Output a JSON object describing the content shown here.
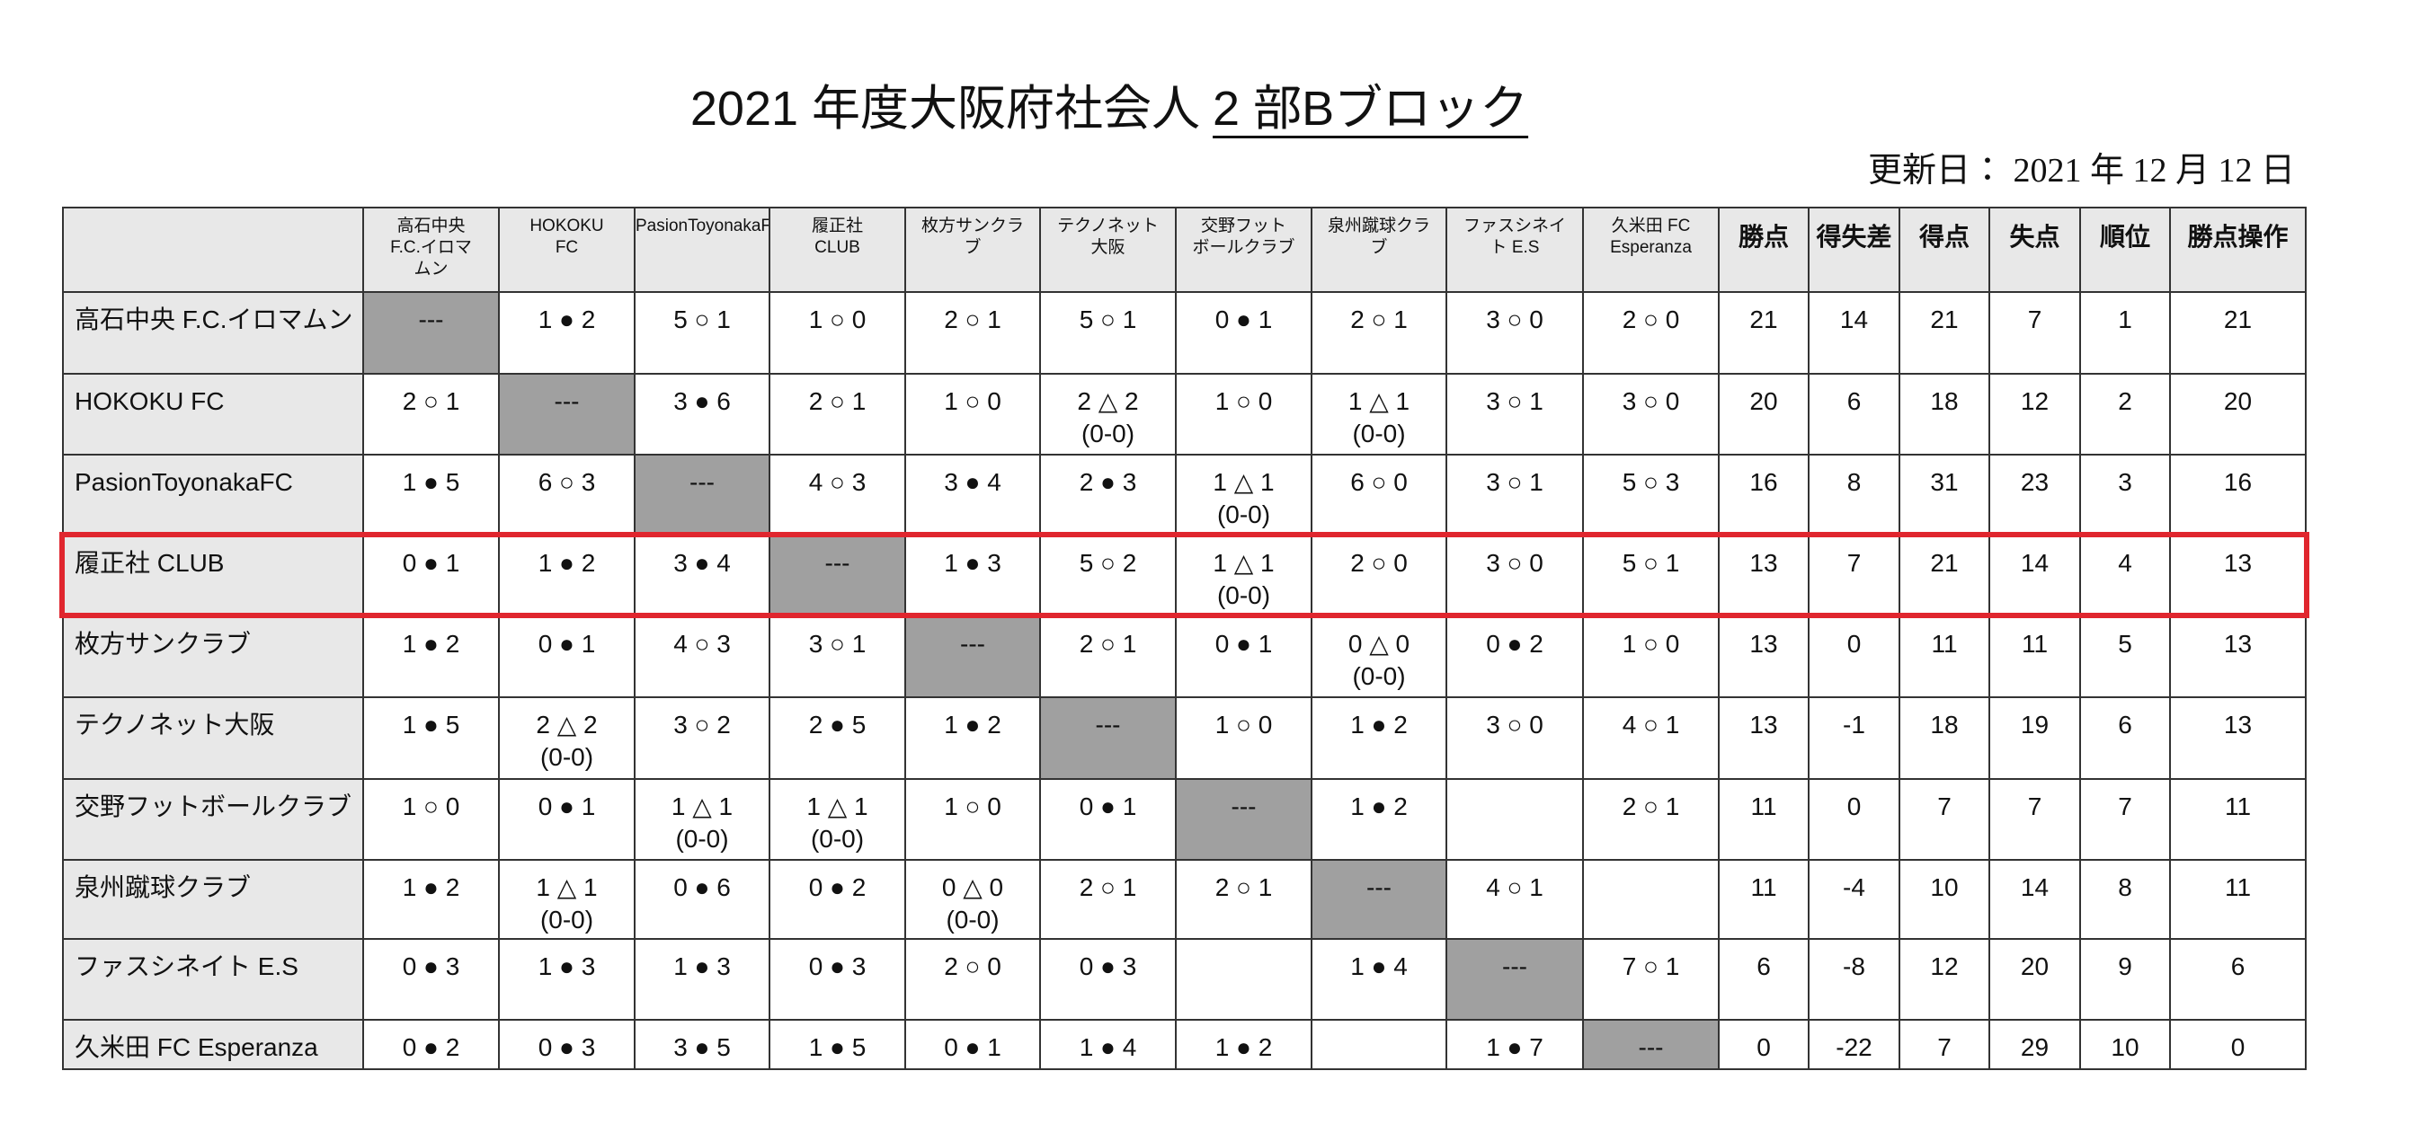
{
  "title": {
    "main": "2021 年度大阪府社会人",
    "underlined": "2 部Bブロック"
  },
  "updated": "更新日： 2021 年 12 月 12 日",
  "highlight": {
    "row": 3,
    "color": "#e0262e"
  },
  "table": {
    "team_headers": [
      [
        "高石中央",
        "F.C.イロマ",
        "ムン"
      ],
      [
        "HOKOKU",
        "FC"
      ],
      [
        "PasionToyonakaFC"
      ],
      [
        "履正社",
        "CLUB"
      ],
      [
        "枚方サンクラ",
        "ブ"
      ],
      [
        "テクノネット",
        "大阪"
      ],
      [
        "交野フット",
        "ボールクラブ"
      ],
      [
        "泉州蹴球クラ",
        "ブ"
      ],
      [
        "ファスシネイ",
        "ト E.S"
      ],
      [
        "久米田 FC",
        "Esperanza"
      ]
    ],
    "stat_headers": [
      "勝点",
      "得失差",
      "得点",
      "失点",
      "順位",
      "勝点操作"
    ],
    "rows": [
      {
        "name": "高石中央 F.C.イロマムン",
        "results": [
          [
            "---"
          ],
          [
            "1 ● 2"
          ],
          [
            "5 ○ 1"
          ],
          [
            "1 ○ 0"
          ],
          [
            "2 ○ 1"
          ],
          [
            "5 ○ 1"
          ],
          [
            "0 ● 1"
          ],
          [
            "2 ○ 1"
          ],
          [
            "3 ○ 0"
          ],
          [
            "2 ○ 0"
          ]
        ],
        "stats": [
          21,
          14,
          21,
          7,
          1,
          21
        ]
      },
      {
        "name": "HOKOKU FC",
        "results": [
          [
            "2 ○ 1"
          ],
          [
            "---"
          ],
          [
            "3 ● 6"
          ],
          [
            "2 ○ 1"
          ],
          [
            "1 ○ 0"
          ],
          [
            "2 △ 2",
            "(0-0)"
          ],
          [
            "1 ○ 0"
          ],
          [
            "1 △ 1",
            "(0-0)"
          ],
          [
            "3 ○ 1"
          ],
          [
            "3 ○ 0"
          ]
        ],
        "stats": [
          20,
          6,
          18,
          12,
          2,
          20
        ]
      },
      {
        "name": "PasionToyonakaFC",
        "results": [
          [
            "1 ● 5"
          ],
          [
            "6 ○ 3"
          ],
          [
            "---"
          ],
          [
            "4 ○ 3"
          ],
          [
            "3 ● 4"
          ],
          [
            "2 ● 3"
          ],
          [
            "1 △ 1",
            "(0-0)"
          ],
          [
            "6 ○ 0"
          ],
          [
            "3 ○ 1"
          ],
          [
            "5 ○ 3"
          ]
        ],
        "stats": [
          16,
          8,
          31,
          23,
          3,
          16
        ]
      },
      {
        "name": "履正社 CLUB",
        "results": [
          [
            "0 ● 1"
          ],
          [
            "1 ● 2"
          ],
          [
            "3 ● 4"
          ],
          [
            "---"
          ],
          [
            "1 ● 3"
          ],
          [
            "5 ○ 2"
          ],
          [
            "1 △ 1",
            "(0-0)"
          ],
          [
            "2 ○ 0"
          ],
          [
            "3 ○ 0"
          ],
          [
            "5 ○ 1"
          ]
        ],
        "stats": [
          13,
          7,
          21,
          14,
          4,
          13
        ]
      },
      {
        "name": "枚方サンクラブ",
        "results": [
          [
            "1 ● 2"
          ],
          [
            "0 ● 1"
          ],
          [
            "4 ○ 3"
          ],
          [
            "3 ○ 1"
          ],
          [
            "---"
          ],
          [
            "2 ○ 1"
          ],
          [
            "0 ● 1"
          ],
          [
            "0 △ 0",
            "(0-0)"
          ],
          [
            "0 ● 2"
          ],
          [
            "1 ○ 0"
          ]
        ],
        "stats": [
          13,
          0,
          11,
          11,
          5,
          13
        ]
      },
      {
        "name": "テクノネット大阪",
        "results": [
          [
            "1 ● 5"
          ],
          [
            "2 △ 2",
            "(0-0)"
          ],
          [
            "3 ○ 2"
          ],
          [
            "2 ● 5"
          ],
          [
            "1 ● 2"
          ],
          [
            "---"
          ],
          [
            "1 ○ 0"
          ],
          [
            "1 ● 2"
          ],
          [
            "3 ○ 0"
          ],
          [
            "4 ○ 1"
          ]
        ],
        "stats": [
          13,
          -1,
          18,
          19,
          6,
          13
        ]
      },
      {
        "name": "交野フットボールクラブ",
        "results": [
          [
            "1 ○ 0"
          ],
          [
            "0 ● 1"
          ],
          [
            "1 △ 1",
            "(0-0)"
          ],
          [
            "1 △ 1",
            "(0-0)"
          ],
          [
            "1 ○ 0"
          ],
          [
            "0 ● 1"
          ],
          [
            "---"
          ],
          [
            "1 ● 2"
          ],
          [],
          [
            "2 ○ 1"
          ]
        ],
        "stats": [
          11,
          0,
          7,
          7,
          7,
          11
        ]
      },
      {
        "name": "泉州蹴球クラブ",
        "results": [
          [
            "1 ● 2"
          ],
          [
            "1 △ 1",
            "(0-0)"
          ],
          [
            "0 ● 6"
          ],
          [
            "0 ● 2"
          ],
          [
            "0 △ 0",
            "(0-0)"
          ],
          [
            "2 ○ 1"
          ],
          [
            "2 ○ 1"
          ],
          [
            "---"
          ],
          [
            "4 ○ 1"
          ],
          []
        ],
        "stats": [
          11,
          -4,
          10,
          14,
          8,
          11
        ]
      },
      {
        "name": "ファスシネイト E.S",
        "results": [
          [
            "0 ● 3"
          ],
          [
            "1 ● 3"
          ],
          [
            "1 ● 3"
          ],
          [
            "0 ● 3"
          ],
          [
            "2 ○ 0"
          ],
          [
            "0 ● 3"
          ],
          [],
          [
            "1 ● 4"
          ],
          [
            "---"
          ],
          [
            "7 ○ 1"
          ]
        ],
        "stats": [
          6,
          -8,
          12,
          20,
          9,
          6
        ]
      },
      {
        "name": "久米田 FC Esperanza",
        "results": [
          [
            "0 ● 2"
          ],
          [
            "0 ● 3"
          ],
          [
            "3 ● 5"
          ],
          [
            "1 ● 5"
          ],
          [
            "0 ● 1"
          ],
          [
            "1 ● 4"
          ],
          [
            "1 ● 2"
          ],
          [],
          [
            "1 ● 7"
          ],
          [
            "---"
          ]
        ],
        "stats": [
          0,
          -22,
          7,
          29,
          10,
          0
        ]
      }
    ]
  }
}
